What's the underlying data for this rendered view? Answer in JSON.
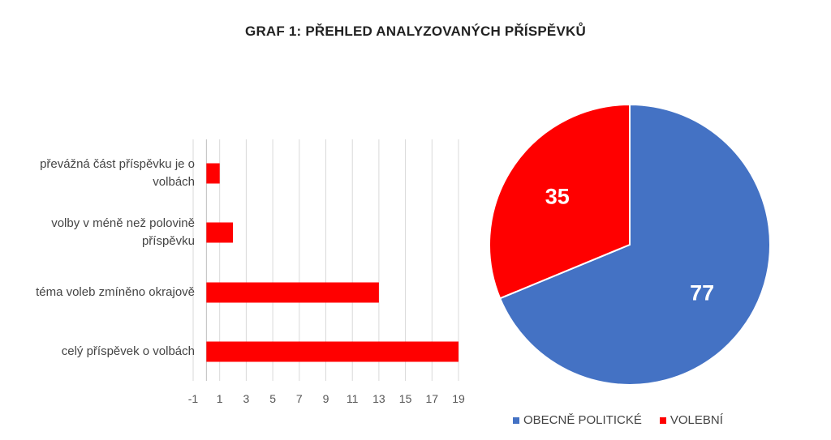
{
  "chart_data": [
    {
      "type": "bar",
      "orientation": "horizontal",
      "title": "GRAF 1: PŘEHLED ANALYZOVANÝCH PŘÍSPĚVKŮ",
      "categories": [
        "celý příspěvek o volbách",
        "téma voleb zmíněno okrajově",
        "volby v méně než polovině příspěvku",
        "převážná část příspěvku je o volbách"
      ],
      "values": [
        19,
        13,
        2,
        1
      ],
      "xlim": [
        -1,
        19
      ],
      "xticks": [
        -1,
        1,
        3,
        5,
        7,
        9,
        11,
        13,
        15,
        17,
        19
      ],
      "grid": true,
      "color": "#ff0000"
    },
    {
      "type": "pie",
      "slices": [
        {
          "name": "OBECNĚ POLITICKÉ",
          "value": 77,
          "color": "#4472c4"
        },
        {
          "name": "VOLEBNÍ",
          "value": 35,
          "color": "#ff0000"
        }
      ],
      "legend_position": "bottom"
    }
  ]
}
